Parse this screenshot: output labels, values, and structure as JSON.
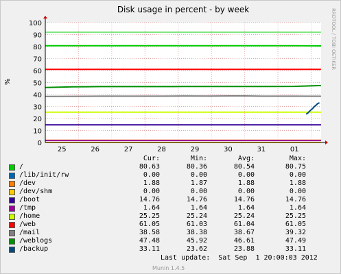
{
  "chart_data": {
    "type": "line",
    "title": "Disk usage in percent - by week",
    "ylabel": "%",
    "side_label": "RRDTOOL / TOBI OETIKER",
    "x_ticks": [
      "25",
      "26",
      "27",
      "28",
      "29",
      "30",
      "31",
      "01"
    ],
    "y_ticks": [
      0,
      10,
      20,
      30,
      40,
      50,
      60,
      70,
      80,
      90,
      100
    ],
    "ylim": [
      0,
      100
    ],
    "grid": true,
    "limit_line": 92,
    "series": [
      {
        "name": "/",
        "color": "#00cc00",
        "values": [
          80.7,
          80.7,
          80.7,
          80.7,
          80.7,
          80.7,
          80.7,
          80.7,
          80.7,
          80.7,
          80.6
        ]
      },
      {
        "name": "/lib/init/rw",
        "color": "#0066b3",
        "values": [
          0,
          0,
          0,
          0,
          0,
          0,
          0,
          0,
          0,
          0,
          0
        ]
      },
      {
        "name": "/dev",
        "color": "#ff8000",
        "values": [
          1.88,
          1.88,
          1.88,
          1.88,
          1.88,
          1.88,
          1.88,
          1.88,
          1.88,
          1.88,
          1.88
        ]
      },
      {
        "name": "/dev/shm",
        "color": "#ffcc00",
        "values": [
          0,
          0,
          0,
          0,
          0,
          0,
          0,
          0,
          0,
          0,
          0
        ]
      },
      {
        "name": "/boot",
        "color": "#330099",
        "values": [
          14.76,
          14.76,
          14.76,
          14.76,
          14.76,
          14.76,
          14.76,
          14.76,
          14.76,
          14.76,
          14.76
        ]
      },
      {
        "name": "/tmp",
        "color": "#990099",
        "values": [
          1.64,
          1.64,
          1.64,
          1.64,
          1.64,
          1.64,
          1.64,
          1.64,
          1.64,
          1.64,
          1.64
        ]
      },
      {
        "name": "/home",
        "color": "#ccff00",
        "values": [
          25.24,
          25.25,
          25.25,
          25.25,
          25.25,
          25.25,
          25.25,
          25.25,
          25.25,
          25.25,
          25.25
        ]
      },
      {
        "name": "/web",
        "color": "#ff0000",
        "values": [
          61.04,
          61.04,
          61.04,
          61.04,
          61.04,
          61.04,
          61.04,
          61.04,
          61.04,
          61.05,
          61.05
        ]
      },
      {
        "name": "/mail",
        "color": "#808080",
        "values": [
          38.4,
          38.5,
          38.6,
          38.6,
          38.6,
          38.8,
          38.7,
          38.9,
          38.6,
          38.6,
          38.58
        ]
      },
      {
        "name": "/weblogs",
        "color": "#008f00",
        "values": [
          45.9,
          46.4,
          46.6,
          46.6,
          46.6,
          46.7,
          46.7,
          46.7,
          46.7,
          46.8,
          47.48
        ]
      },
      {
        "name": "/backup",
        "color": "#00487d",
        "x": [
          7.85,
          7.9,
          7.95,
          8.0,
          8.05,
          8.1,
          8.15,
          8.2,
          8.25
        ],
        "values": [
          23.6,
          24.5,
          26.0,
          27.3,
          28.5,
          30.0,
          31.2,
          32.5,
          33.11
        ]
      }
    ],
    "legend_headers": [
      "Cur:",
      "Min:",
      "Avg:",
      "Max:"
    ],
    "legend_rows": [
      {
        "name": "/",
        "color": "#00cc00",
        "cur": "80.63",
        "min": "80.36",
        "avg": "80.54",
        "max": "80.75"
      },
      {
        "name": "/lib/init/rw",
        "color": "#0066b3",
        "cur": "0.00",
        "min": "0.00",
        "avg": "0.00",
        "max": "0.00"
      },
      {
        "name": "/dev",
        "color": "#ff8000",
        "cur": "1.88",
        "min": "1.87",
        "avg": "1.88",
        "max": "1.88"
      },
      {
        "name": "/dev/shm",
        "color": "#ffcc00",
        "cur": "0.00",
        "min": "0.00",
        "avg": "0.00",
        "max": "0.00"
      },
      {
        "name": "/boot",
        "color": "#330099",
        "cur": "14.76",
        "min": "14.76",
        "avg": "14.76",
        "max": "14.76"
      },
      {
        "name": "/tmp",
        "color": "#990099",
        "cur": "1.64",
        "min": "1.64",
        "avg": "1.64",
        "max": "1.64"
      },
      {
        "name": "/home",
        "color": "#ccff00",
        "cur": "25.25",
        "min": "25.24",
        "avg": "25.24",
        "max": "25.25"
      },
      {
        "name": "/web",
        "color": "#ff0000",
        "cur": "61.05",
        "min": "61.03",
        "avg": "61.04",
        "max": "61.05"
      },
      {
        "name": "/mail",
        "color": "#808080",
        "cur": "38.58",
        "min": "38.38",
        "avg": "38.67",
        "max": "39.32"
      },
      {
        "name": "/weblogs",
        "color": "#008f00",
        "cur": "47.48",
        "min": "45.92",
        "avg": "46.61",
        "max": "47.49"
      },
      {
        "name": "/backup",
        "color": "#00487d",
        "cur": "33.11",
        "min": "23.62",
        "avg": "23.88",
        "max": "33.11"
      }
    ],
    "last_update": "Last update:  Sat Sep  1 20:00:03 2012",
    "footer": "Munin 1.4.5"
  }
}
